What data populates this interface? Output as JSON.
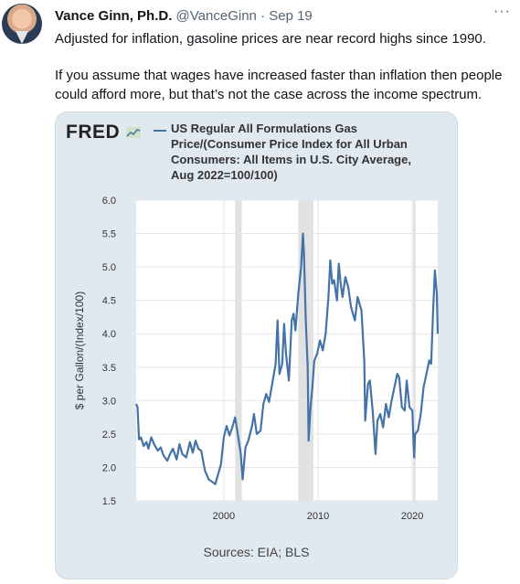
{
  "tweet": {
    "author_name": "Vance Ginn, Ph.D.",
    "handle": "@VanceGinn",
    "date": "Sep 19",
    "separator": "·",
    "more_icon": "more-icon",
    "paragraph1": "Adjusted for inflation, gasoline prices are near record highs since 1990.",
    "paragraph2": "If you assume that wages have increased faster than inflation then people could afford more, but that’s not the case across the income spectrum."
  },
  "card": {
    "logo": "FRED",
    "sources": "Sources: EIA; BLS"
  },
  "chart_data": {
    "type": "line",
    "legend": "US Regular All Formulations Gas Price/(Consumer Price Index for All Urban Consumers: All Items in U.S. City Average, Aug 2022=100/100)",
    "ylabel": "$ per Gallon/(Index/100)",
    "xlabel": "",
    "ylim": [
      1.5,
      6.0
    ],
    "yticks": [
      "1.5",
      "2.0",
      "2.5",
      "3.0",
      "3.5",
      "4.0",
      "4.5",
      "5.0",
      "5.5",
      "6.0"
    ],
    "xlim": [
      1990.7,
      2022.7
    ],
    "xticks": [
      "2000",
      "2010",
      "2020"
    ],
    "recessions": [
      [
        2001.2,
        2001.9
      ],
      [
        2007.9,
        2009.5
      ],
      [
        2020.1,
        2020.35
      ]
    ],
    "series_color": "#4572a7",
    "series": [
      {
        "name": "US Regular All Formulations Gas Price/(Consumer Price Index for All Urban Consumers: All Items in U.S. City Average, Aug 2022=100/100)",
        "x": [
          1990.7,
          1990.85,
          1991.0,
          1991.2,
          1991.5,
          1991.8,
          1992.0,
          1992.3,
          1992.6,
          1993.0,
          1993.3,
          1993.6,
          1994.0,
          1994.3,
          1994.6,
          1995.0,
          1995.3,
          1995.6,
          1996.0,
          1996.4,
          1996.7,
          1997.0,
          1997.3,
          1997.6,
          1998.0,
          1998.4,
          1998.8,
          1999.1,
          1999.4,
          1999.7,
          2000.0,
          2000.3,
          2000.6,
          2000.9,
          2001.2,
          2001.5,
          2001.8,
          2002.0,
          2002.3,
          2002.6,
          2003.0,
          2003.2,
          2003.5,
          2003.9,
          2004.2,
          2004.5,
          2004.8,
          2005.2,
          2005.5,
          2005.7,
          2005.9,
          2006.2,
          2006.4,
          2006.6,
          2006.9,
          2007.2,
          2007.4,
          2007.6,
          2007.9,
          2008.2,
          2008.4,
          2008.5,
          2008.7,
          2008.9,
          2009.0,
          2009.2,
          2009.4,
          2009.6,
          2009.9,
          2010.2,
          2010.5,
          2010.8,
          2011.1,
          2011.3,
          2011.5,
          2011.7,
          2012.0,
          2012.2,
          2012.4,
          2012.6,
          2012.9,
          2013.2,
          2013.5,
          2013.9,
          2014.2,
          2014.4,
          2014.6,
          2014.9,
          2015.0,
          2015.3,
          2015.5,
          2015.8,
          2016.1,
          2016.3,
          2016.6,
          2016.9,
          2017.2,
          2017.5,
          2017.8,
          2018.1,
          2018.4,
          2018.6,
          2018.9,
          2019.2,
          2019.4,
          2019.7,
          2020.0,
          2020.2,
          2020.3,
          2020.6,
          2020.9,
          2021.2,
          2021.5,
          2021.8,
          2022.0,
          2022.2,
          2022.4,
          2022.6,
          2022.7
        ],
        "values": [
          2.95,
          2.9,
          2.42,
          2.45,
          2.32,
          2.38,
          2.28,
          2.45,
          2.35,
          2.25,
          2.3,
          2.18,
          2.1,
          2.2,
          2.28,
          2.12,
          2.35,
          2.2,
          2.15,
          2.38,
          2.22,
          2.4,
          2.28,
          2.25,
          1.95,
          1.82,
          1.78,
          1.75,
          1.9,
          2.05,
          2.45,
          2.62,
          2.48,
          2.6,
          2.75,
          2.48,
          2.2,
          1.82,
          2.3,
          2.4,
          2.62,
          2.8,
          2.5,
          2.55,
          2.95,
          3.1,
          2.98,
          3.3,
          3.55,
          4.2,
          3.4,
          3.55,
          4.15,
          3.7,
          3.3,
          4.2,
          4.3,
          4.05,
          4.6,
          5.0,
          5.5,
          5.2,
          4.2,
          3.5,
          2.4,
          2.9,
          3.2,
          3.6,
          3.7,
          3.9,
          3.75,
          4.0,
          4.55,
          5.1,
          4.75,
          4.8,
          4.5,
          5.05,
          4.75,
          4.55,
          4.85,
          4.7,
          4.4,
          4.2,
          4.55,
          4.45,
          4.35,
          3.6,
          2.7,
          3.25,
          3.3,
          2.85,
          2.2,
          2.7,
          2.8,
          2.6,
          2.95,
          2.75,
          3.0,
          3.2,
          3.4,
          3.35,
          2.9,
          2.85,
          3.3,
          2.9,
          2.85,
          2.15,
          2.5,
          2.55,
          2.8,
          3.2,
          3.4,
          3.6,
          3.55,
          4.3,
          4.95,
          4.6,
          4.0
        ]
      }
    ]
  }
}
